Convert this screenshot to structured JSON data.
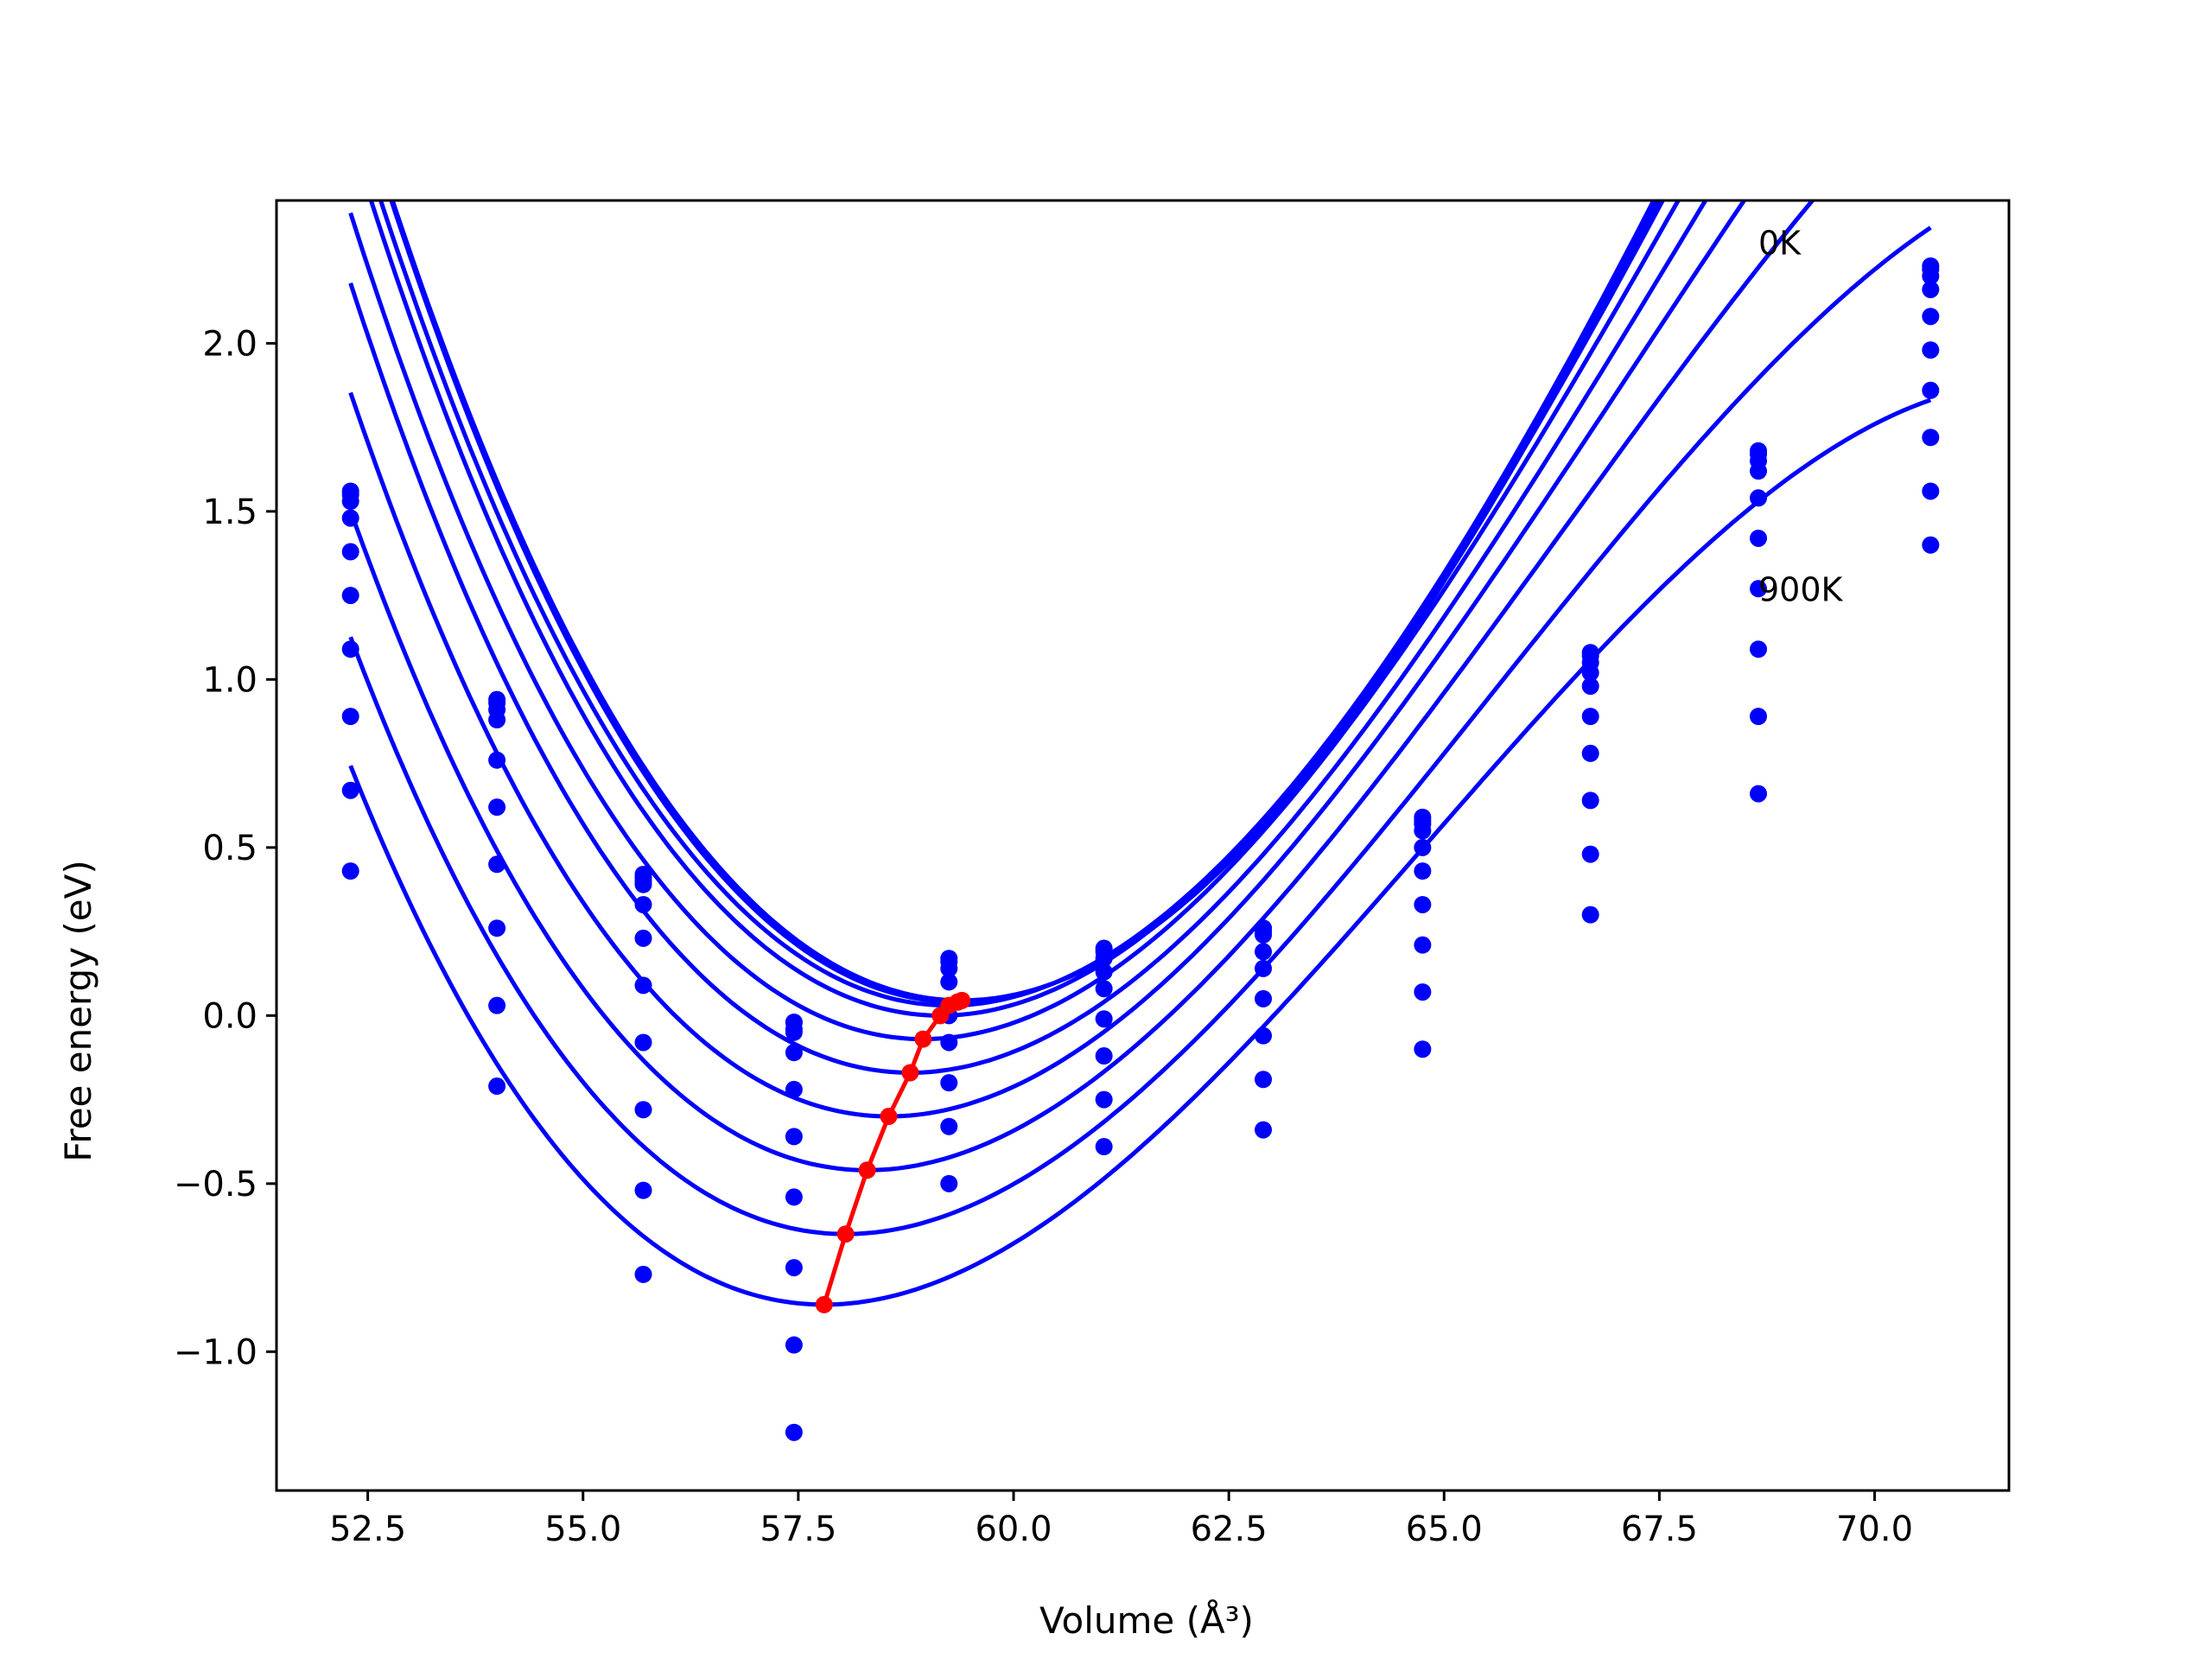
{
  "chart_data": {
    "type": "scatter",
    "xlabel": "Volume (Å³)",
    "ylabel": "Free energy (eV)",
    "xlim": [
      51.44,
      71.56
    ],
    "ylim": [
      -1.413,
      2.425
    ],
    "grid": false,
    "x_ticks": [
      52.5,
      55.0,
      57.5,
      60.0,
      62.5,
      65.0,
      67.5,
      70.0
    ],
    "y_ticks": [
      -1.0,
      -0.5,
      0.0,
      0.5,
      1.0,
      1.5,
      2.0
    ],
    "x_tick_labels": [
      "52.5",
      "55.0",
      "57.5",
      "60.0",
      "62.5",
      "65.0",
      "67.5",
      "70.0"
    ],
    "y_tick_labels": [
      "−1.0",
      "−0.5",
      "0.0",
      "0.5",
      "1.0",
      "1.5",
      "2.0"
    ],
    "annotations": [
      {
        "text": "0K",
        "x": 68.65,
        "y": 2.3
      },
      {
        "text": "900K",
        "x": 68.65,
        "y": 1.27
      }
    ],
    "volumes": [
      52.3,
      54.0,
      55.7,
      57.45,
      59.25,
      61.05,
      62.9,
      64.75,
      66.7,
      68.65,
      70.65
    ],
    "series": [
      {
        "points": [
          1.56,
          0.94,
          0.42,
          -0.02,
          0.17,
          0.2,
          0.26,
          0.59,
          1.08,
          1.68,
          2.23
        ],
        "fit": {
          "x0": 59.4,
          "e0": 0.045,
          "k": 0.0465,
          "c": -0.0012
        }
      },
      {
        "points": [
          1.55,
          0.93,
          0.41,
          -0.02,
          0.16,
          0.19,
          0.26,
          0.58,
          1.07,
          1.67,
          2.22
        ],
        "fit": {
          "x0": 59.35,
          "e0": 0.04,
          "k": 0.0466,
          "c": -0.0013
        }
      },
      {
        "points": [
          1.53,
          0.91,
          0.4,
          -0.04,
          0.14,
          0.17,
          0.25,
          0.57,
          1.05,
          1.65,
          2.2
        ],
        "fit": {
          "x0": 59.25,
          "e0": 0.03,
          "k": 0.0464,
          "c": -0.0013
        }
      },
      {
        "points": [
          1.48,
          0.88,
          0.39,
          -0.05,
          0.1,
          0.13,
          0.24,
          0.55,
          1.02,
          1.62,
          2.16
        ],
        "fit": {
          "x0": 59.15,
          "e0": 0.0,
          "k": 0.0462,
          "c": -0.0014
        }
      },
      {
        "points": [
          1.38,
          0.76,
          0.33,
          -0.11,
          0.0,
          0.08,
          0.19,
          0.5,
          0.98,
          1.54,
          2.08
        ],
        "fit": {
          "x0": 58.95,
          "e0": -0.07,
          "k": 0.0456,
          "c": -0.0015
        }
      },
      {
        "points": [
          1.25,
          0.62,
          0.23,
          -0.22,
          -0.08,
          -0.01,
          0.14,
          0.43,
          0.89,
          1.42,
          1.98
        ],
        "fit": {
          "x0": 58.8,
          "e0": -0.17,
          "k": 0.0452,
          "c": -0.0016
        }
      },
      {
        "points": [
          1.09,
          0.45,
          0.09,
          -0.36,
          -0.2,
          -0.12,
          0.05,
          0.33,
          0.78,
          1.27,
          1.86
        ],
        "fit": {
          "x0": 58.55,
          "e0": -0.3,
          "k": 0.0445,
          "c": -0.0017
        }
      },
      {
        "points": [
          0.89,
          0.26,
          -0.08,
          -0.54,
          -0.33,
          -0.25,
          -0.06,
          0.21,
          0.64,
          1.09,
          1.72
        ],
        "fit": {
          "x0": 58.3,
          "e0": -0.46,
          "k": 0.0437,
          "c": -0.0018
        }
      },
      {
        "points": [
          0.67,
          0.03,
          -0.28,
          -0.75,
          -0.5,
          -0.39,
          -0.19,
          0.07,
          0.48,
          0.89,
          1.56
        ],
        "fit": {
          "x0": 58.05,
          "e0": -0.65,
          "k": 0.0428,
          "c": -0.0019
        }
      },
      {
        "points": [
          0.43,
          -0.21,
          -0.52,
          -0.98,
          null,
          null,
          -0.34,
          -0.1,
          0.3,
          0.66,
          1.4
        ],
        "fit": {
          "x0": 57.8,
          "e0": -0.86,
          "k": 0.042,
          "c": -0.002
        }
      },
      {
        "points": [
          null,
          null,
          -0.77,
          -1.24,
          null,
          null,
          null,
          null,
          null,
          null,
          null
        ],
        "fit": null
      }
    ],
    "minima": {
      "x": [
        57.8,
        58.05,
        58.3,
        58.55,
        58.8,
        58.95,
        59.15,
        59.25,
        59.35,
        59.4
      ],
      "y": [
        -0.86,
        -0.65,
        -0.46,
        -0.3,
        -0.17,
        -0.07,
        0.0,
        0.03,
        0.04,
        0.045
      ]
    },
    "colors": {
      "fit": "#0000ff",
      "points": "#0000ff",
      "minima": "#ff0000"
    }
  }
}
